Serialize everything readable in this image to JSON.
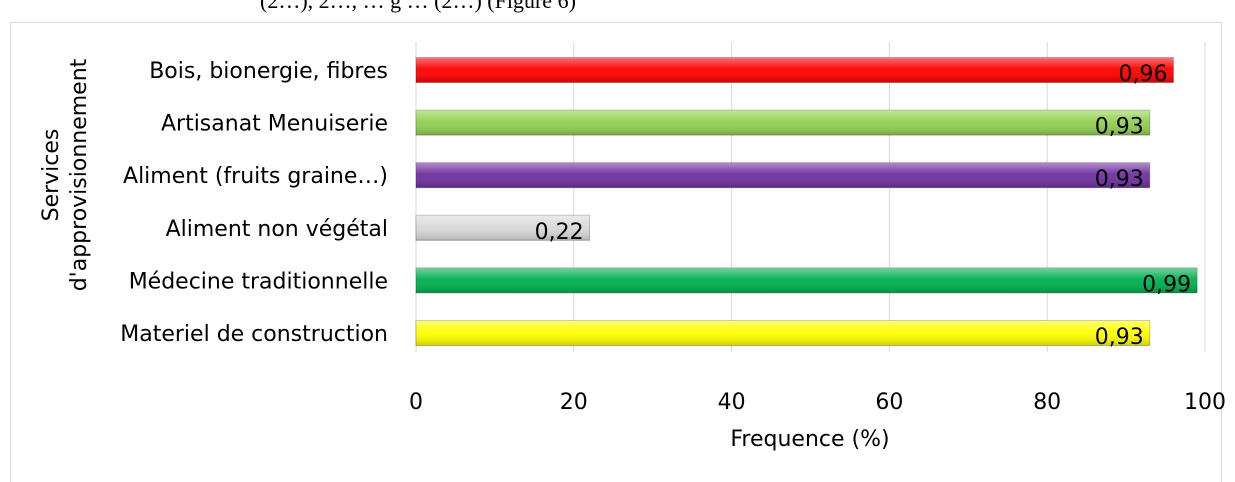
{
  "header_fragment": "(2…), 2…, … g … (2…) (Figure 6)",
  "chart_data": {
    "type": "bar",
    "orientation": "horizontal",
    "categories": [
      "Bois, bionergie, fibres",
      "Artisanat Menuiserie",
      "Aliment (fruits graine…)",
      "Aliment non végétal",
      "Médecine traditionnelle",
      "Materiel de construction"
    ],
    "values": [
      96,
      93,
      93,
      22,
      99,
      93
    ],
    "data_labels": [
      "0,96",
      "0,93",
      "0,93",
      "0,22",
      "0,99",
      "0,93"
    ],
    "bar_colors": [
      "#ff0000",
      "#92d050",
      "#7030a0",
      "#d9d9d9",
      "#00b050",
      "#ffff00"
    ],
    "xlabel": "Frequence (%)",
    "ylabel_lines": [
      "Services",
      "d'approvisionnement"
    ],
    "xlim": [
      0,
      100
    ],
    "xticks": [
      0,
      20,
      40,
      60,
      80,
      100
    ],
    "grid": "vertical"
  }
}
